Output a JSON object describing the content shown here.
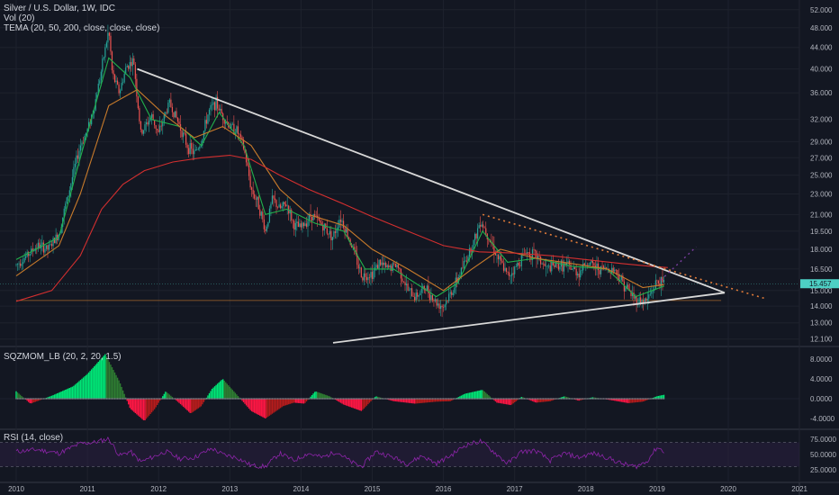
{
  "header": {
    "title": "Silver / U.S. Dollar, 1W, IDC",
    "vol_label": "Vol (20)",
    "tema_label": "TEMA (20, 50, 200, close, close, close)"
  },
  "indicators": {
    "sqz_label": "SQZMOM_LB (20, 2, 20, 1.5)",
    "rsi_label": "RSI (14, close)"
  },
  "current_price": "15.457",
  "colors": {
    "background": "#131722",
    "up_candle": "#26a69a",
    "down_candle": "#ef5350",
    "tema_fast": "#22b14c",
    "tema_mid": "#c77a2b",
    "tema_slow": "#d32f2f",
    "trendline": "#d8d8d8",
    "dotted_trend": "#e07b39",
    "projection": "#7b3fa0",
    "support_line": "#c77a2b",
    "price_tag": "#4dd0c4",
    "sqz_up_strong": "#00e676",
    "sqz_up_weak": "#2e7d32",
    "sqz_down_strong": "#ff1744",
    "sqz_down_weak": "#b71c1c",
    "rsi_line": "#8e24aa",
    "rsi_band": "#2a1f40"
  },
  "chart_data": [
    {
      "type": "candlestick",
      "title": "Silver / U.S. Dollar, 1W, IDC",
      "x_ticks": [
        "2010",
        "2011",
        "2012",
        "2013",
        "2014",
        "2015",
        "2016",
        "2017",
        "2018",
        "2019",
        "2020",
        "2021"
      ],
      "y_ticks": [
        "52.000",
        "48.000",
        "44.000",
        "40.000",
        "36.000",
        "32.000",
        "29.000",
        "27.000",
        "25.000",
        "23.000",
        "21.000",
        "19.500",
        "18.000",
        "16.500",
        "15.000",
        "14.000",
        "13.000",
        "12.100"
      ],
      "scale": "log",
      "ylim": [
        11.8,
        53
      ],
      "close_path": [
        [
          2010.0,
          16.8
        ],
        [
          2010.15,
          17.5
        ],
        [
          2010.3,
          18.3
        ],
        [
          2010.45,
          18.0
        ],
        [
          2010.6,
          19.3
        ],
        [
          2010.75,
          23.5
        ],
        [
          2010.9,
          28.5
        ],
        [
          2011.0,
          30.5
        ],
        [
          2011.1,
          34.0
        ],
        [
          2011.2,
          40.0
        ],
        [
          2011.3,
          47.5
        ],
        [
          2011.35,
          39.0
        ],
        [
          2011.45,
          36.0
        ],
        [
          2011.55,
          40.5
        ],
        [
          2011.65,
          41.5
        ],
        [
          2011.7,
          35.0
        ],
        [
          2011.75,
          30.0
        ],
        [
          2011.9,
          32.5
        ],
        [
          2012.0,
          30.0
        ],
        [
          2012.15,
          34.5
        ],
        [
          2012.3,
          31.0
        ],
        [
          2012.4,
          28.5
        ],
        [
          2012.5,
          27.5
        ],
        [
          2012.6,
          29.0
        ],
        [
          2012.7,
          33.0
        ],
        [
          2012.8,
          34.5
        ],
        [
          2012.9,
          32.5
        ],
        [
          2013.0,
          31.0
        ],
        [
          2013.1,
          30.5
        ],
        [
          2013.2,
          28.0
        ],
        [
          2013.3,
          23.5
        ],
        [
          2013.4,
          22.0
        ],
        [
          2013.5,
          19.5
        ],
        [
          2013.6,
          22.5
        ],
        [
          2013.7,
          21.5
        ],
        [
          2013.8,
          22.0
        ],
        [
          2013.9,
          20.0
        ],
        [
          2014.0,
          19.8
        ],
        [
          2014.15,
          21.0
        ],
        [
          2014.3,
          20.0
        ],
        [
          2014.45,
          19.0
        ],
        [
          2014.55,
          20.8
        ],
        [
          2014.7,
          18.5
        ],
        [
          2014.85,
          16.0
        ],
        [
          2015.0,
          16.2
        ],
        [
          2015.1,
          17.0
        ],
        [
          2015.2,
          16.5
        ],
        [
          2015.35,
          16.8
        ],
        [
          2015.5,
          15.0
        ],
        [
          2015.6,
          14.6
        ],
        [
          2015.75,
          15.2
        ],
        [
          2015.9,
          14.2
        ],
        [
          2016.0,
          14.0
        ],
        [
          2016.15,
          15.2
        ],
        [
          2016.3,
          17.0
        ],
        [
          2016.45,
          19.0
        ],
        [
          2016.52,
          20.5
        ],
        [
          2016.6,
          19.5
        ],
        [
          2016.75,
          17.5
        ],
        [
          2016.9,
          16.0
        ],
        [
          2017.0,
          16.5
        ],
        [
          2017.15,
          17.8
        ],
        [
          2017.3,
          17.5
        ],
        [
          2017.45,
          16.5
        ],
        [
          2017.6,
          16.8
        ],
        [
          2017.75,
          16.7
        ],
        [
          2017.9,
          16.2
        ],
        [
          2018.0,
          17.0
        ],
        [
          2018.2,
          16.5
        ],
        [
          2018.4,
          16.5
        ],
        [
          2018.55,
          15.3
        ],
        [
          2018.7,
          14.4
        ],
        [
          2018.85,
          14.3
        ],
        [
          2019.0,
          15.6
        ],
        [
          2019.1,
          15.46
        ]
      ],
      "tema_series": [
        {
          "period": 20,
          "values": [
            [
              2010.0,
              17.2
            ],
            [
              2010.6,
              19.0
            ],
            [
              2010.9,
              27.0
            ],
            [
              2011.3,
              42.0
            ],
            [
              2011.6,
              38.5
            ],
            [
              2011.9,
              32.0
            ],
            [
              2012.3,
              31.0
            ],
            [
              2012.6,
              28.5
            ],
            [
              2012.85,
              33.0
            ],
            [
              2013.2,
              28.5
            ],
            [
              2013.5,
              21.0
            ],
            [
              2013.8,
              21.5
            ],
            [
              2014.2,
              20.2
            ],
            [
              2014.6,
              19.5
            ],
            [
              2014.9,
              16.5
            ],
            [
              2015.3,
              16.5
            ],
            [
              2015.9,
              14.6
            ],
            [
              2016.2,
              15.5
            ],
            [
              2016.55,
              19.5
            ],
            [
              2016.9,
              17.0
            ],
            [
              2017.3,
              17.3
            ],
            [
              2017.8,
              16.7
            ],
            [
              2018.3,
              16.5
            ],
            [
              2018.7,
              14.6
            ],
            [
              2019.1,
              15.3
            ]
          ]
        },
        {
          "period": 50,
          "values": [
            [
              2010.0,
              16.0
            ],
            [
              2010.6,
              18.3
            ],
            [
              2010.9,
              23.0
            ],
            [
              2011.3,
              34.0
            ],
            [
              2011.7,
              36.5
            ],
            [
              2012.1,
              32.5
            ],
            [
              2012.5,
              29.5
            ],
            [
              2012.9,
              31.0
            ],
            [
              2013.3,
              28.5
            ],
            [
              2013.7,
              23.5
            ],
            [
              2014.1,
              21.0
            ],
            [
              2014.6,
              20.0
            ],
            [
              2015.0,
              18.0
            ],
            [
              2015.5,
              16.5
            ],
            [
              2016.0,
              15.0
            ],
            [
              2016.4,
              16.5
            ],
            [
              2016.8,
              18.0
            ],
            [
              2017.3,
              17.3
            ],
            [
              2017.8,
              16.9
            ],
            [
              2018.3,
              16.5
            ],
            [
              2018.8,
              15.2
            ],
            [
              2019.1,
              15.4
            ]
          ]
        },
        {
          "period": 200,
          "values": [
            [
              2010.0,
              14.3
            ],
            [
              2010.5,
              15.0
            ],
            [
              2010.9,
              17.5
            ],
            [
              2011.2,
              21.5
            ],
            [
              2011.5,
              24.0
            ],
            [
              2011.8,
              25.5
            ],
            [
              2012.2,
              26.5
            ],
            [
              2012.6,
              27.0
            ],
            [
              2013.0,
              27.3
            ],
            [
              2013.3,
              26.8
            ],
            [
              2013.7,
              25.0
            ],
            [
              2014.1,
              23.5
            ],
            [
              2014.6,
              22.0
            ],
            [
              2015.0,
              20.8
            ],
            [
              2015.5,
              19.5
            ],
            [
              2016.0,
              18.3
            ],
            [
              2016.5,
              17.8
            ],
            [
              2017.0,
              17.7
            ],
            [
              2017.5,
              17.5
            ],
            [
              2018.0,
              17.2
            ],
            [
              2018.5,
              16.9
            ],
            [
              2018.9,
              16.7
            ],
            [
              2019.15,
              16.6
            ]
          ]
        }
      ],
      "trendlines": [
        {
          "name": "descending resistance",
          "from": [
            2011.7,
            40.0
          ],
          "to": [
            2019.95,
            14.85
          ]
        },
        {
          "name": "ascending support",
          "from": [
            2014.45,
            11.9
          ],
          "to": [
            2019.95,
            14.85
          ]
        },
        {
          "name": "dotted resistance",
          "from": [
            2016.55,
            21.0
          ],
          "to": [
            2020.5,
            14.5
          ]
        },
        {
          "name": "horizontal support",
          "from": [
            2010.0,
            14.35
          ],
          "to": [
            2019.9,
            14.35
          ]
        }
      ]
    },
    {
      "type": "bar",
      "title": "SQZMOM_LB (20, 2, 20, 1.5)",
      "y_ticks": [
        "8.0000",
        "4.0000",
        "0.0000",
        "-4.0000"
      ],
      "ylim": [
        -6,
        10
      ],
      "values": [
        [
          2010.0,
          1.5
        ],
        [
          2010.2,
          -1.0
        ],
        [
          2010.5,
          0.6
        ],
        [
          2010.8,
          2.5
        ],
        [
          2011.0,
          5.0
        ],
        [
          2011.25,
          9.0
        ],
        [
          2011.45,
          3.5
        ],
        [
          2011.6,
          -2.0
        ],
        [
          2011.8,
          -4.5
        ],
        [
          2011.95,
          -2.0
        ],
        [
          2012.1,
          1.5
        ],
        [
          2012.3,
          -1.0
        ],
        [
          2012.45,
          -3.0
        ],
        [
          2012.6,
          -1.5
        ],
        [
          2012.75,
          2.0
        ],
        [
          2012.9,
          4.0
        ],
        [
          2013.1,
          0.8
        ],
        [
          2013.3,
          -2.5
        ],
        [
          2013.5,
          -4.0
        ],
        [
          2013.75,
          -1.5
        ],
        [
          2013.9,
          -0.8
        ],
        [
          2014.05,
          -1.0
        ],
        [
          2014.2,
          1.5
        ],
        [
          2014.4,
          0.5
        ],
        [
          2014.6,
          -1.2
        ],
        [
          2014.85,
          -2.5
        ],
        [
          2015.05,
          0.5
        ],
        [
          2015.3,
          -0.5
        ],
        [
          2015.6,
          -1.0
        ],
        [
          2015.9,
          -0.6
        ],
        [
          2016.1,
          -0.5
        ],
        [
          2016.3,
          1.0
        ],
        [
          2016.55,
          1.8
        ],
        [
          2016.75,
          -0.8
        ],
        [
          2016.95,
          -1.3
        ],
        [
          2017.1,
          0.4
        ],
        [
          2017.3,
          -0.8
        ],
        [
          2017.5,
          -0.5
        ],
        [
          2017.7,
          0.5
        ],
        [
          2017.9,
          -0.4
        ],
        [
          2018.1,
          0.3
        ],
        [
          2018.4,
          -0.4
        ],
        [
          2018.6,
          -0.9
        ],
        [
          2018.8,
          -0.6
        ],
        [
          2019.0,
          0.5
        ],
        [
          2019.1,
          0.8
        ]
      ]
    },
    {
      "type": "line",
      "title": "RSI (14, close)",
      "y_ticks": [
        "75.0000",
        "50.0000",
        "25.0000"
      ],
      "ylim": [
        10,
        90
      ],
      "band": [
        30,
        70
      ],
      "values": [
        [
          2010.0,
          55
        ],
        [
          2010.3,
          58
        ],
        [
          2010.6,
          52
        ],
        [
          2010.9,
          68
        ],
        [
          2011.1,
          70
        ],
        [
          2011.3,
          76
        ],
        [
          2011.45,
          48
        ],
        [
          2011.6,
          55
        ],
        [
          2011.75,
          38
        ],
        [
          2011.9,
          45
        ],
        [
          2012.1,
          55
        ],
        [
          2012.3,
          43
        ],
        [
          2012.5,
          45
        ],
        [
          2012.75,
          60
        ],
        [
          2012.9,
          50
        ],
        [
          2013.1,
          45
        ],
        [
          2013.3,
          32
        ],
        [
          2013.5,
          30
        ],
        [
          2013.7,
          52
        ],
        [
          2013.9,
          40
        ],
        [
          2014.1,
          52
        ],
        [
          2014.3,
          45
        ],
        [
          2014.5,
          55
        ],
        [
          2014.7,
          38
        ],
        [
          2014.85,
          30
        ],
        [
          2015.05,
          55
        ],
        [
          2015.3,
          45
        ],
        [
          2015.5,
          35
        ],
        [
          2015.7,
          48
        ],
        [
          2015.9,
          35
        ],
        [
          2016.1,
          48
        ],
        [
          2016.3,
          65
        ],
        [
          2016.52,
          72
        ],
        [
          2016.7,
          55
        ],
        [
          2016.9,
          35
        ],
        [
          2017.1,
          55
        ],
        [
          2017.3,
          56
        ],
        [
          2017.5,
          40
        ],
        [
          2017.7,
          52
        ],
        [
          2017.9,
          45
        ],
        [
          2018.1,
          52
        ],
        [
          2018.3,
          45
        ],
        [
          2018.5,
          35
        ],
        [
          2018.7,
          30
        ],
        [
          2018.85,
          38
        ],
        [
          2019.0,
          62
        ],
        [
          2019.1,
          55
        ]
      ]
    }
  ]
}
